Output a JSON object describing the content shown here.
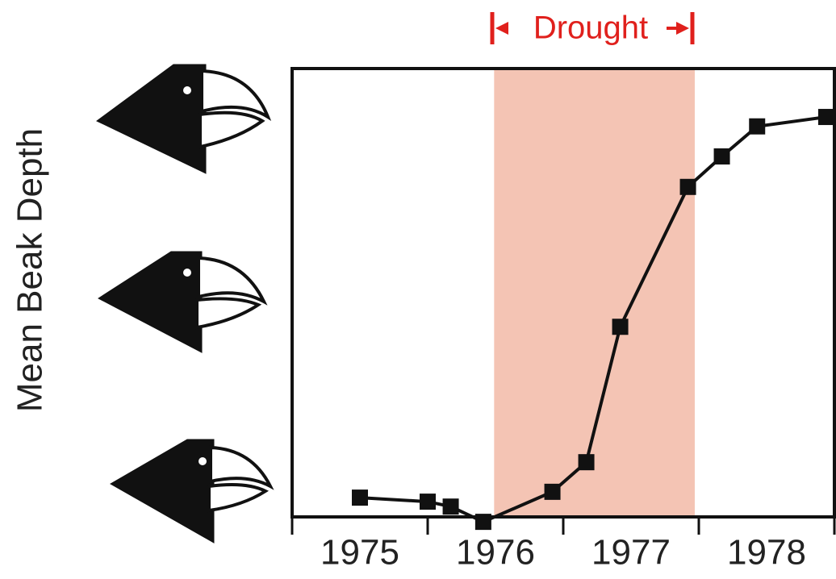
{
  "chart_data": {
    "type": "line",
    "y_label": "Mean Beak Depth",
    "annotation": "Drought",
    "shaded_region": [
      1976.49,
      1977.97
    ],
    "shaded_color": "#f4c4b4",
    "x": [
      1975.5,
      1976.0,
      1976.17,
      1976.41,
      1976.92,
      1977.17,
      1977.42,
      1977.92,
      1978.17,
      1978.43,
      1978.94
    ],
    "series": [
      {
        "color": "#111111",
        "values": [
          0.43,
          0.34,
          0.23,
          -0.11,
          0.56,
          1.22,
          4.24,
          7.36,
          8.04,
          8.71,
          8.92
        ]
      }
    ],
    "xlim": [
      1975,
      1979
    ],
    "ylim": [
      0,
      10
    ],
    "xticks": [
      {
        "value": 1975.5,
        "label": "1975"
      },
      {
        "value": 1976.5,
        "label": "1976"
      },
      {
        "value": 1977.5,
        "label": "1977"
      },
      {
        "value": 1978.5,
        "label": "1978"
      }
    ],
    "xminor": [
      1975,
      1976,
      1977,
      1978,
      1979
    ]
  }
}
